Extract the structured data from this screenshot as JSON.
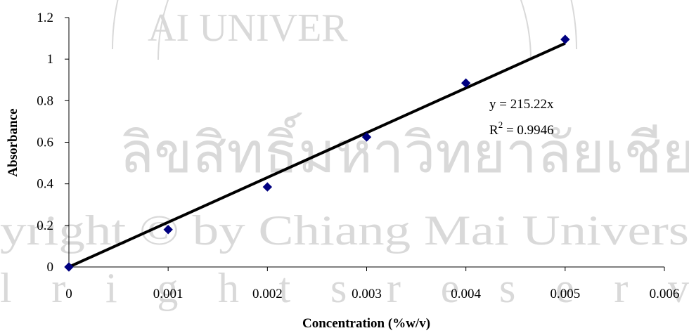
{
  "watermark": {
    "arc_text": "AI UNIVER",
    "thai_text": "ลิขสิทธิ์มหาวิทยาลัยเชียงใ",
    "copyright_text": "yright © by Chiang Mai Univers",
    "rights_text": "l r i g h t s r e s e r v",
    "color": "#d9d9d9"
  },
  "chart_data": {
    "type": "scatter",
    "title": "",
    "xlabel": "Concentration (%w/v)",
    "ylabel": "Absorbance",
    "xlim": [
      0,
      0.006
    ],
    "ylim": [
      0,
      1.2
    ],
    "x_ticks": [
      0,
      0.001,
      0.002,
      0.003,
      0.004,
      0.005,
      0.006
    ],
    "x_tick_labels": [
      "0",
      "0.001",
      "0.002",
      "0.003",
      "0.004",
      "0.005",
      "0.006"
    ],
    "y_ticks": [
      0,
      0.2,
      0.4,
      0.6,
      0.8,
      1.0,
      1.2
    ],
    "y_tick_labels": [
      "0",
      "0.2",
      "0.4",
      "0.6",
      "0.8",
      "1",
      "1.2"
    ],
    "grid": false,
    "legend": "none",
    "series": [
      {
        "marker": "diamond",
        "color": "#000080",
        "x": [
          0,
          0.001,
          0.002,
          0.003,
          0.004,
          0.005
        ],
        "y": [
          0,
          0.18,
          0.385,
          0.625,
          0.885,
          1.095
        ]
      }
    ],
    "trendline": {
      "type": "linear",
      "slope": 215.22,
      "intercept": 0,
      "x_range": [
        0,
        0.005
      ],
      "color": "#000000",
      "equation_label": "y = 215.22x",
      "r2_prefix": "R",
      "r2_sup": "2",
      "r2_suffix": " = 0.9946"
    }
  }
}
